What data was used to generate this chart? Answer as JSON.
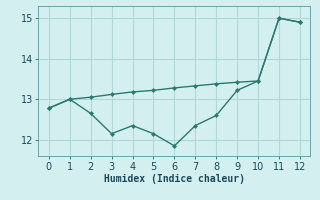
{
  "xlabel": "Humidex (Indice chaleur)",
  "x": [
    0,
    1,
    2,
    3,
    4,
    5,
    6,
    7,
    8,
    9,
    10,
    11,
    12
  ],
  "y_upper": [
    12.78,
    13.0,
    13.05,
    13.12,
    13.18,
    13.22,
    13.28,
    13.33,
    13.38,
    13.42,
    13.45,
    15.0,
    14.9
  ],
  "y_lower": [
    12.78,
    13.0,
    12.65,
    12.15,
    12.35,
    12.15,
    11.85,
    12.35,
    12.6,
    13.22,
    13.45,
    15.0,
    14.9
  ],
  "line_color": "#2a7a6f",
  "bg_color": "#d4efef",
  "grid_color": "#b0d8d8",
  "ylim": [
    11.6,
    15.3
  ],
  "xlim": [
    -0.5,
    12.5
  ],
  "yticks": [
    12,
    13,
    14,
    15
  ],
  "xticks": [
    0,
    1,
    2,
    3,
    4,
    5,
    6,
    7,
    8,
    9,
    10,
    11,
    12
  ]
}
